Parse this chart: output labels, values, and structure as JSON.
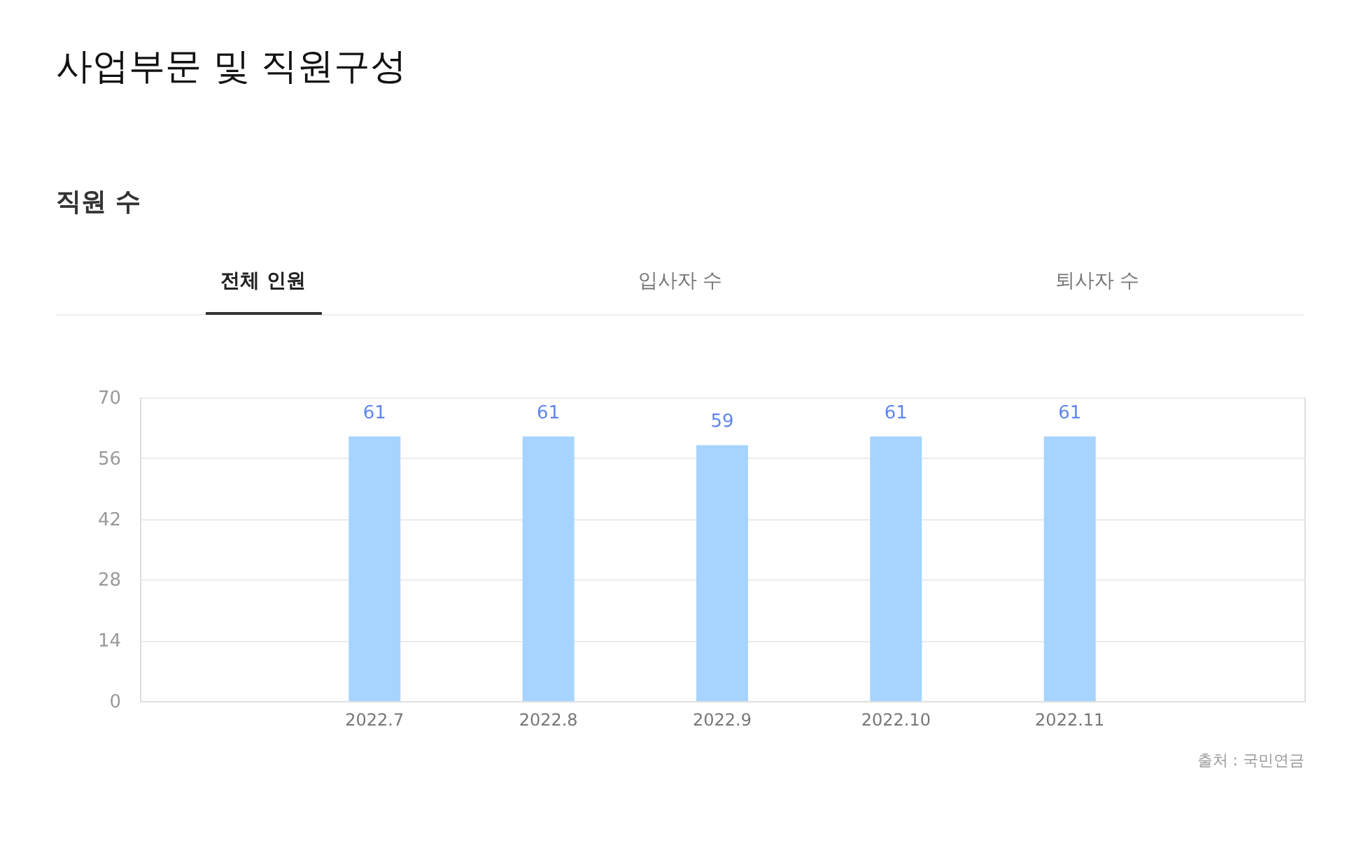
{
  "chart_data": {
    "type": "bar",
    "title": "사업부문 및 직원구성",
    "subtitle": "직원 수",
    "annotations": [
      "전체 인원",
      "입사자 수",
      "퇴사자 수",
      "출처 : 국민연금"
    ],
    "categories": [
      "2022.7",
      "2022.8",
      "2022.9",
      "2022.10",
      "2022.11"
    ],
    "values": [
      61,
      61,
      59,
      61,
      61
    ],
    "color": "#a6d4ff",
    "data_labels": true,
    "ylim": [
      0,
      70
    ],
    "yticks": [
      0,
      14,
      28,
      42,
      56,
      70
    ],
    "grid": "y"
  }
}
